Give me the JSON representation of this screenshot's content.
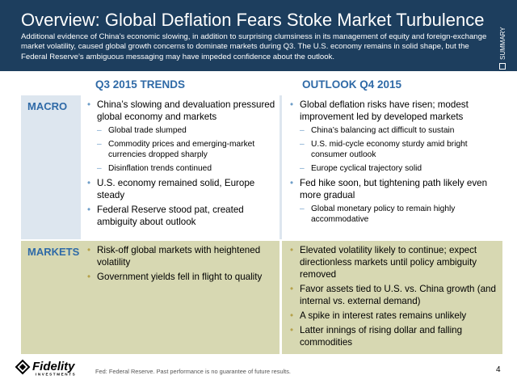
{
  "header": {
    "title": "Overview: Global Deflation Fears Stoke Market Turbulence",
    "subtitle": "Additional evidence of China’s economic slowing, in addition to surprising clumsiness in its management of equity and foreign-exchange market volatility, caused global growth concerns to dominate markets during Q3. The U.S. economy remains in solid shape, but the Federal Reserve’s ambiguous messaging may have impeded confidence about the outlook.",
    "side_tab": "SUMMARY",
    "background_color": "#1d3e5e"
  },
  "columns": {
    "q3": "Q3 2015 TRENDS",
    "q4": "OUTLOOK Q4 2015"
  },
  "rows": {
    "macro": {
      "label": "MACRO",
      "q3": {
        "b1": "China’s slowing and devaluation pressured global economy and markets",
        "b1_s1": "Global trade slumped",
        "b1_s2": "Commodity prices and emerging-market currencies dropped sharply",
        "b1_s3": "Disinflation trends continued",
        "b2": "U.S. economy remained solid, Europe steady",
        "b3": "Federal Reserve stood pat, created ambiguity about outlook"
      },
      "q4": {
        "b1": "Global deflation risks have risen; modest improvement led by developed markets",
        "b1_s1": "China’s balancing act difficult to sustain",
        "b1_s2": "U.S. mid-cycle economy sturdy amid bright consumer outlook",
        "b1_s3": "Europe cyclical trajectory solid",
        "b2": "Fed hike soon, but tightening path likely even more gradual",
        "b2_s1": "Global monetary policy to remain highly accommodative"
      }
    },
    "markets": {
      "label": "MARKETS",
      "q3": {
        "b1": "Risk-off global markets with heightened volatility",
        "b2": "Government yields fell in flight to quality"
      },
      "q4": {
        "b1": "Elevated volatility likely to continue; expect directionless markets until policy ambiguity removed",
        "b2": "Favor assets tied to U.S. vs. China growth (and internal vs. external demand)",
        "b3": "A spike in interest rates remains unlikely",
        "b4": "Latter innings of rising dollar and falling commodities"
      }
    }
  },
  "footer": {
    "logo_text": "Fidelity",
    "logo_subtext": "INVESTMENTS",
    "note": "Fed: Federal Reserve. Past performance is no guarantee of future results.",
    "page": "4"
  }
}
